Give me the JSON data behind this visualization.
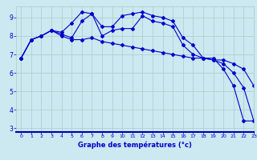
{
  "xlabel": "Graphe des températures (°c)",
  "background_color": "#cce8f0",
  "grid_color": "#aacccc",
  "line_color": "#0000cc",
  "xlim": [
    -0.5,
    23
  ],
  "ylim": [
    2.8,
    9.6
  ],
  "yticks": [
    3,
    4,
    5,
    6,
    7,
    8,
    9
  ],
  "xticks": [
    0,
    1,
    2,
    3,
    4,
    5,
    6,
    7,
    8,
    9,
    10,
    11,
    12,
    13,
    14,
    15,
    16,
    17,
    18,
    19,
    20,
    21,
    22,
    23
  ],
  "series1_x": [
    0,
    1,
    2,
    3,
    4,
    5,
    6,
    7,
    8,
    9,
    10,
    11,
    12,
    13,
    14,
    15,
    16,
    17,
    18,
    19,
    20,
    21,
    22,
    23
  ],
  "series1_y": [
    6.8,
    7.8,
    8.0,
    8.3,
    8.0,
    7.8,
    7.8,
    7.9,
    7.7,
    7.6,
    7.5,
    7.4,
    7.3,
    7.2,
    7.1,
    7.0,
    6.9,
    6.8,
    6.8,
    6.7,
    6.7,
    6.5,
    6.2,
    5.3
  ],
  "series2_x": [
    0,
    1,
    2,
    3,
    4,
    5,
    6,
    7,
    8,
    9,
    10,
    11,
    12,
    13,
    14,
    15,
    16,
    17,
    18,
    19,
    20,
    21,
    22,
    23
  ],
  "series2_y": [
    6.8,
    7.8,
    8.0,
    8.3,
    8.2,
    8.7,
    9.3,
    9.2,
    8.5,
    8.5,
    9.1,
    9.2,
    9.3,
    9.1,
    9.0,
    8.8,
    7.9,
    7.5,
    6.8,
    6.8,
    6.2,
    5.3,
    3.4,
    3.4
  ],
  "series3_x": [
    0,
    1,
    2,
    3,
    4,
    5,
    6,
    7,
    8,
    9,
    10,
    11,
    12,
    13,
    14,
    15,
    16,
    17,
    18,
    19,
    20,
    21,
    22,
    23
  ],
  "series3_y": [
    6.8,
    7.8,
    8.0,
    8.3,
    8.1,
    7.9,
    8.8,
    9.2,
    8.0,
    8.3,
    8.4,
    8.4,
    9.1,
    8.8,
    8.7,
    8.5,
    7.5,
    7.0,
    6.8,
    6.7,
    6.5,
    6.0,
    5.2,
    3.4
  ]
}
